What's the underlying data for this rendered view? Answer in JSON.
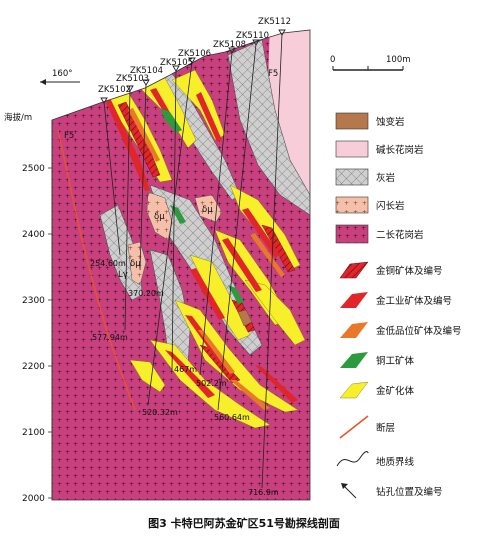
{
  "figure": {
    "caption": "图3   卡特巴阿苏金矿区51号勘探线剖面",
    "azimuth": "160°",
    "y_axis_label": "海拔/m",
    "y_ticks": [
      "2500",
      "2400",
      "2300",
      "2200",
      "2100",
      "2000"
    ],
    "scale_start": "0",
    "scale_end": "100m",
    "fault_label": "F5",
    "rock_code_pink": "F5",
    "rock_code_1": "δμ",
    "rock_code_2": "δμ",
    "rock_code_3": "δμ",
    "rock_code_gamma": "Lγ",
    "drillholes": [
      "ZK5102",
      "ZK5103",
      "ZK5104",
      "ZK5105",
      "ZK5106",
      "ZK5108",
      "ZK5110",
      "ZK5112"
    ],
    "depths": [
      "254.60m",
      "370.20m",
      "577.94m",
      "520.32m",
      "467m",
      "502.2m",
      "560.64m",
      "716.9m"
    ]
  },
  "legend": {
    "items": [
      {
        "label": "蚀变岩",
        "color": "#b5784d"
      },
      {
        "label": "碱长花岗岩",
        "color": "#f6cdd9"
      },
      {
        "label": "灰岩",
        "color": "#cfcfcf"
      },
      {
        "label": "闪长岩",
        "color": "#f4c0a9"
      },
      {
        "label": "二长花岗岩",
        "color": "#c8417e"
      },
      {
        "label": "金铜矿体及编号",
        "color": "#a2202a"
      },
      {
        "label": "金工业矿体及编号",
        "color": "#e0262a"
      },
      {
        "label": "金低品位矿体及编号",
        "color": "#e8782a"
      },
      {
        "label": "铜工矿体",
        "color": "#2e9a3e"
      },
      {
        "label": "金矿化体",
        "color": "#f6ef2a"
      },
      {
        "label": "断层",
        "color": "#e8542a"
      },
      {
        "label": "地质界线",
        "color": "#222222"
      },
      {
        "label": "钻孔位置及编号",
        "color": "#222222"
      }
    ]
  }
}
